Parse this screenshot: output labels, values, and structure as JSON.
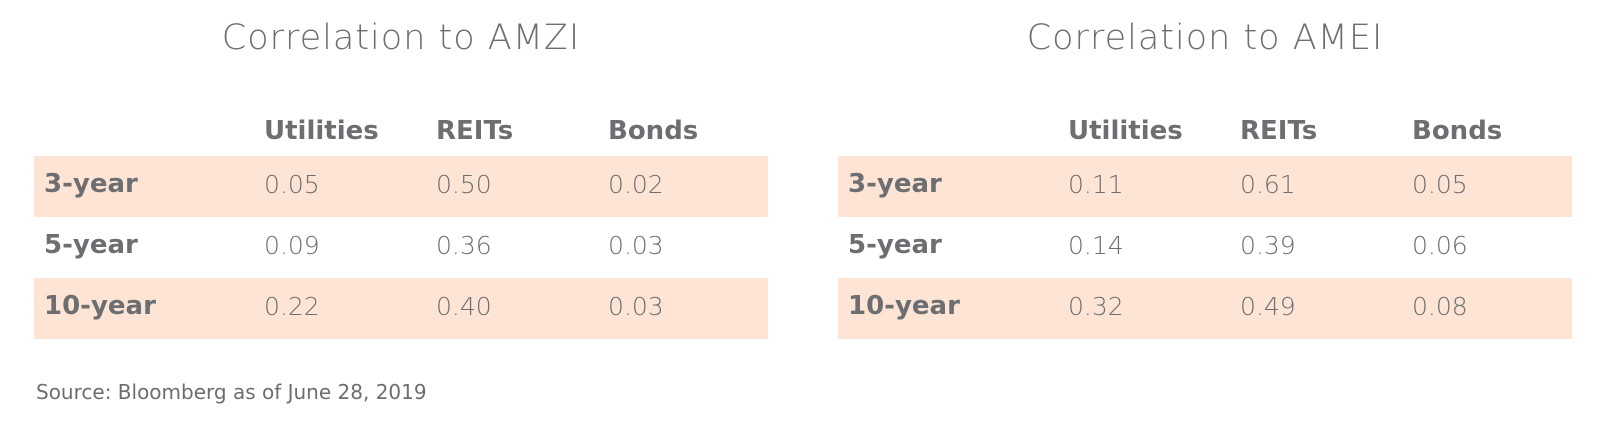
{
  "tables": [
    {
      "title": "Correlation to AMZI",
      "columns": [
        "Utilities",
        "REITs",
        "Bonds"
      ],
      "rows": [
        {
          "label": "3-year",
          "values": [
            "0.05",
            "0.50",
            "0.02"
          ]
        },
        {
          "label": "5-year",
          "values": [
            "0.09",
            "0.36",
            "0.03"
          ]
        },
        {
          "label": "10-year",
          "values": [
            "0.22",
            "0.40",
            "0.03"
          ]
        }
      ]
    },
    {
      "title": "Correlation to AMEI",
      "columns": [
        "Utilities",
        "REITs",
        "Bonds"
      ],
      "rows": [
        {
          "label": "3-year",
          "values": [
            "0.11",
            "0.61",
            "0.05"
          ]
        },
        {
          "label": "5-year",
          "values": [
            "0.14",
            "0.39",
            "0.06"
          ]
        },
        {
          "label": "10-year",
          "values": [
            "0.32",
            "0.49",
            "0.08"
          ]
        }
      ]
    }
  ],
  "source": "Source: Bloomberg as of June 28, 2019"
}
